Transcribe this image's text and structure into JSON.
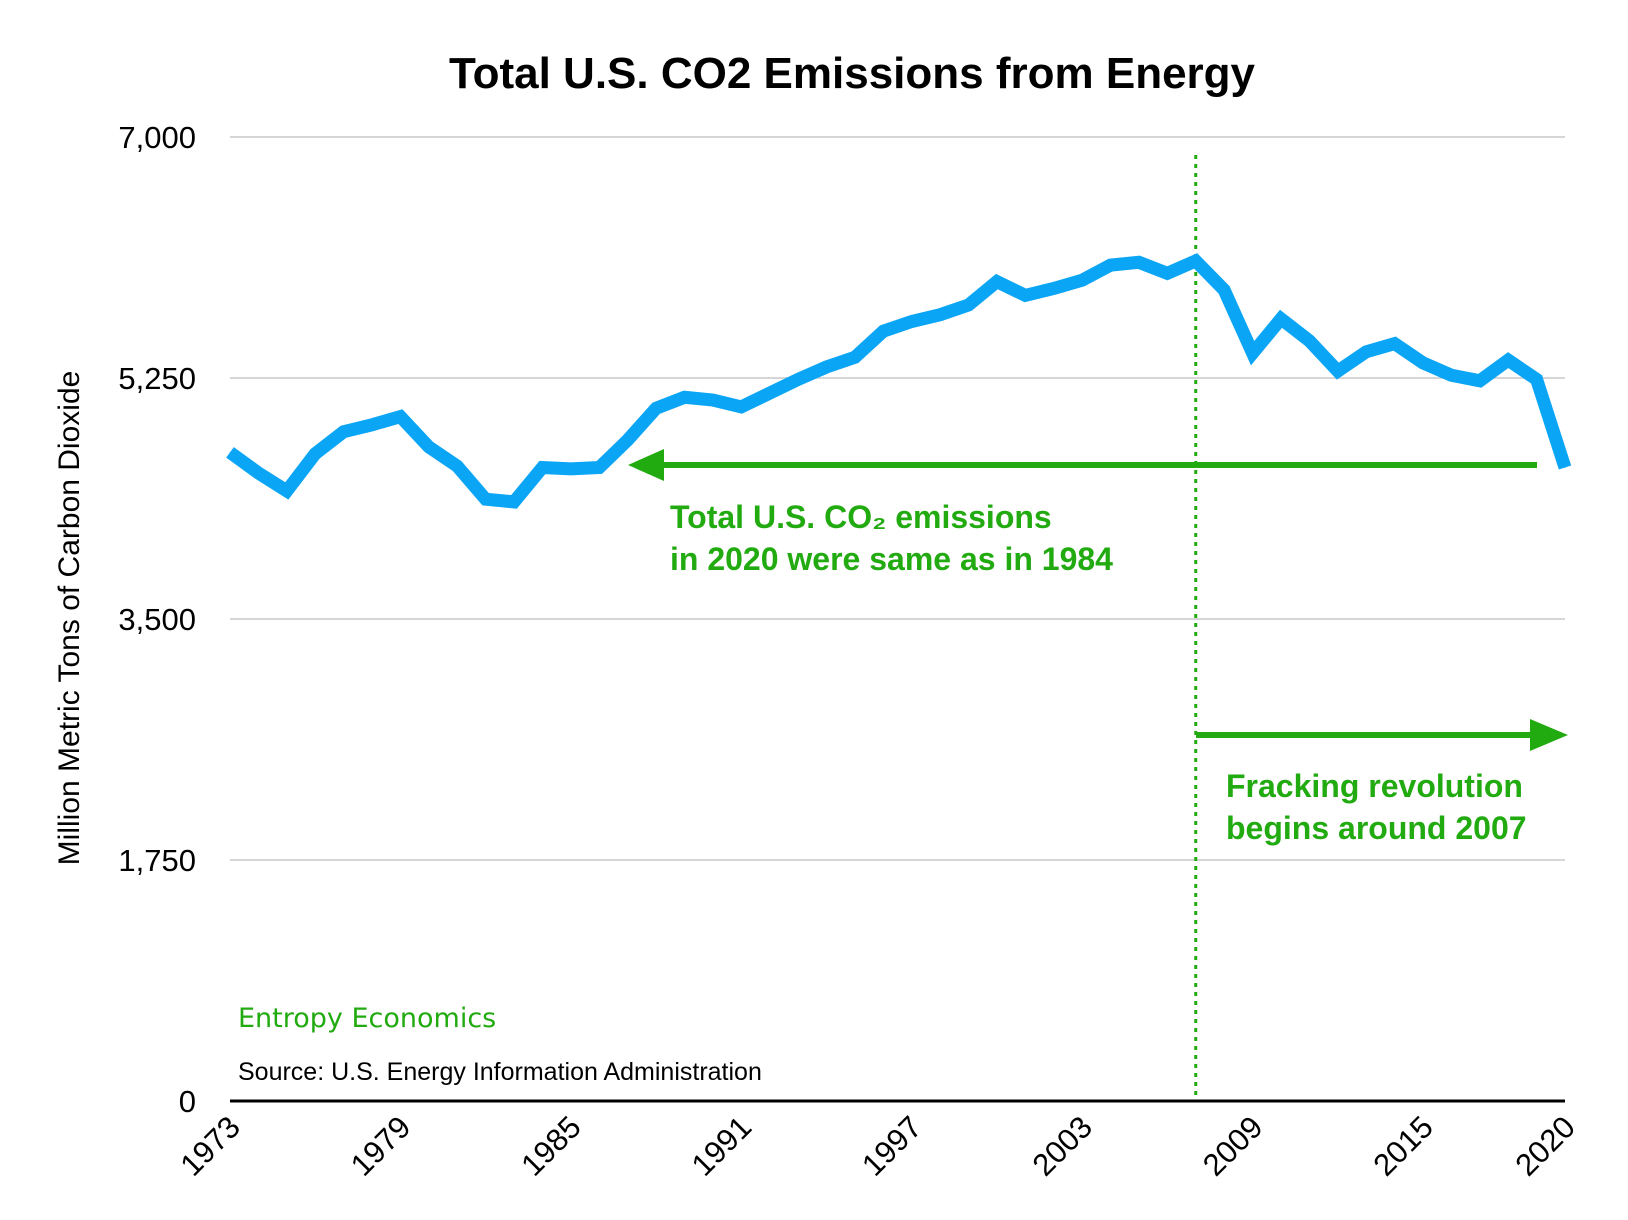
{
  "chart_data": {
    "type": "line",
    "title": "Total U.S. CO2 Emissions from Energy",
    "xlabel": "",
    "ylabel": "Million Metric Tons of Carbon Dioxide",
    "ylim": [
      0,
      7000
    ],
    "xlim": [
      1973,
      2020
    ],
    "yticks": [
      "0",
      "1,750",
      "3,500",
      "5,250",
      "7,000"
    ],
    "ytick_values": [
      0,
      1750,
      3500,
      5250,
      7000
    ],
    "xticks": [
      "1973",
      "1979",
      "1985",
      "1991",
      "1997",
      "2003",
      "2009",
      "2015",
      "2020"
    ],
    "xtick_values": [
      1973,
      1979,
      1985,
      1991,
      1997,
      2003,
      2009,
      2015,
      2020
    ],
    "grid": true,
    "legend": "none",
    "series": [
      {
        "color": "#0aa5f5",
        "x": [
          1973,
          1974,
          1975,
          1976,
          1977,
          1978,
          1979,
          1980,
          1981,
          1982,
          1983,
          1984,
          1985,
          1986,
          1987,
          1988,
          1989,
          1990,
          1991,
          1992,
          1993,
          1994,
          1995,
          1996,
          1997,
          1998,
          1999,
          2000,
          2001,
          2002,
          2003,
          2004,
          2005,
          2006,
          2007,
          2008,
          2009,
          2010,
          2011,
          2012,
          2013,
          2014,
          2015,
          2016,
          2017,
          2018,
          2019,
          2020
        ],
        "values": [
          4710,
          4560,
          4430,
          4700,
          4860,
          4910,
          4970,
          4750,
          4610,
          4370,
          4350,
          4600,
          4590,
          4600,
          4800,
          5030,
          5110,
          5090,
          5040,
          5140,
          5240,
          5330,
          5400,
          5590,
          5660,
          5710,
          5780,
          5950,
          5850,
          5900,
          5960,
          6070,
          6090,
          6010,
          6100,
          5890,
          5430,
          5680,
          5520,
          5300,
          5440,
          5500,
          5360,
          5270,
          5230,
          5380,
          5240,
          4600
        ]
      }
    ],
    "annotations": [
      {
        "lines": [
          "Total U.S. CO₂ emissions",
          "in 2020 were same as in 1984"
        ],
        "arrow": "left"
      },
      {
        "lines": [
          "Fracking revolution",
          "begins around 2007"
        ],
        "arrow": "right"
      }
    ],
    "reference_line": {
      "x": 2007,
      "style": "dotted",
      "color": "#22aa11"
    },
    "credit": "Entropy Economics",
    "source": "Source: U.S. Energy Information Administration",
    "colors": {
      "line": "#0aa5f5",
      "annotation": "#22aa11",
      "grid": "#c8c8c8",
      "axis": "#000000"
    }
  }
}
